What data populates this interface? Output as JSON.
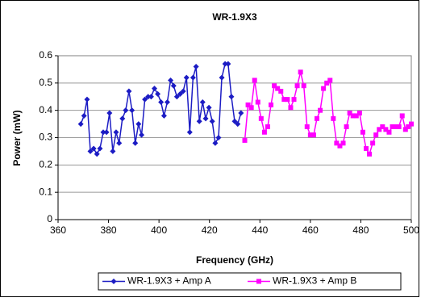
{
  "chart_data": {
    "type": "line",
    "title": "WR-1.9X3",
    "xlabel": "Frequency (GHz)",
    "ylabel": "Power (mW)",
    "xlim": [
      360,
      500
    ],
    "xticks": [
      360,
      380,
      400,
      420,
      440,
      460,
      480,
      500
    ],
    "ylim": [
      0,
      0.6
    ],
    "yticks": [
      0,
      0.1,
      0.2,
      0.3,
      0.4,
      0.5,
      0.6
    ],
    "grid": true,
    "legend": "bottom",
    "series": [
      {
        "name": "WR-1.9X3 + Amp A",
        "color": "#1c1cc4",
        "marker": "diamond",
        "x": [
          369,
          370.3,
          371.5,
          372.8,
          374.1,
          375.4,
          376.6,
          377.9,
          379.2,
          380.4,
          381.7,
          383.0,
          384.2,
          385.5,
          386.8,
          388.1,
          389.3,
          390.6,
          391.9,
          393.1,
          394.4,
          395.7,
          396.9,
          398.2,
          399.5,
          400.8,
          402.0,
          403.3,
          404.6,
          405.8,
          407.1,
          408.4,
          409.6,
          410.9,
          412.2,
          413.5,
          414.7,
          416.0,
          417.3,
          418.5,
          419.8,
          421.1,
          422.3,
          423.6,
          424.9,
          426.2,
          427.4,
          428.7,
          430.0,
          431.2,
          432.5
        ],
        "values": [
          0.35,
          0.38,
          0.44,
          0.25,
          0.26,
          0.24,
          0.26,
          0.32,
          0.32,
          0.39,
          0.25,
          0.32,
          0.28,
          0.37,
          0.4,
          0.47,
          0.4,
          0.28,
          0.35,
          0.31,
          0.44,
          0.45,
          0.45,
          0.48,
          0.46,
          0.43,
          0.38,
          0.43,
          0.51,
          0.49,
          0.45,
          0.46,
          0.47,
          0.52,
          0.32,
          0.52,
          0.56,
          0.36,
          0.43,
          0.37,
          0.41,
          0.36,
          0.28,
          0.3,
          0.52,
          0.57,
          0.57,
          0.45,
          0.36,
          0.35,
          0.39
        ]
      },
      {
        "name": "WR-1.9X3 + Amp B",
        "color": "#ff00ff",
        "marker": "square",
        "x": [
          434.0,
          435.3,
          436.6,
          437.9,
          439.2,
          440.5,
          441.8,
          443.1,
          444.4,
          445.7,
          447.0,
          448.3,
          449.6,
          450.9,
          452.2,
          453.5,
          454.8,
          456.1,
          457.4,
          458.7,
          460.0,
          461.3,
          462.6,
          463.9,
          465.2,
          466.5,
          467.8,
          469.1,
          470.4,
          471.7,
          473.0,
          474.3,
          475.6,
          476.9,
          478.2,
          479.5,
          480.8,
          482.1,
          483.4,
          484.7,
          486.0,
          487.3,
          488.6,
          489.9,
          491.2,
          492.5,
          493.8,
          495.1,
          496.4,
          497.7,
          498.8,
          500.0
        ],
        "values": [
          0.29,
          0.42,
          0.41,
          0.51,
          0.43,
          0.37,
          0.32,
          0.34,
          0.42,
          0.49,
          0.48,
          0.47,
          0.44,
          0.44,
          0.41,
          0.44,
          0.49,
          0.54,
          0.49,
          0.34,
          0.31,
          0.31,
          0.37,
          0.4,
          0.48,
          0.5,
          0.51,
          0.37,
          0.28,
          0.27,
          0.28,
          0.34,
          0.39,
          0.38,
          0.38,
          0.39,
          0.32,
          0.26,
          0.24,
          0.28,
          0.31,
          0.33,
          0.34,
          0.33,
          0.32,
          0.34,
          0.34,
          0.34,
          0.38,
          0.33,
          0.34,
          0.35
        ]
      }
    ]
  }
}
